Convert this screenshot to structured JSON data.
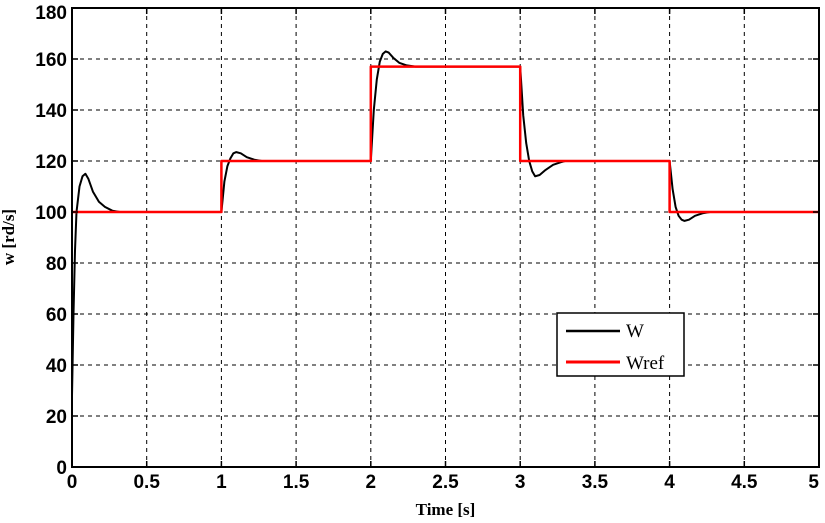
{
  "chart_data": {
    "type": "line",
    "title": "",
    "xlabel": "Time [s]",
    "ylabel": "w [rd/s]",
    "xlim": [
      0,
      5
    ],
    "ylim": [
      0,
      180
    ],
    "xticks": [
      0,
      0.5,
      1,
      1.5,
      2,
      2.5,
      3,
      3.5,
      4,
      4.5,
      5
    ],
    "xtick_labels": [
      "0",
      "0.5",
      "1",
      "1.5",
      "2",
      "2.5",
      "3",
      "3.5",
      "4",
      "4.5",
      "5"
    ],
    "yticks": [
      0,
      20,
      40,
      60,
      80,
      100,
      120,
      140,
      160,
      180
    ],
    "ytick_labels": [
      "0",
      "20",
      "40",
      "60",
      "80",
      "100",
      "120",
      "140",
      "160",
      "180"
    ],
    "grid": true,
    "legend_position": "lower-right",
    "series": [
      {
        "name": "W",
        "color": "#000000",
        "x": [
          0,
          0.01,
          0.02,
          0.03,
          0.05,
          0.07,
          0.09,
          0.11,
          0.14,
          0.18,
          0.22,
          0.27,
          0.32,
          0.37,
          1.0,
          1.02,
          1.04,
          1.06,
          1.08,
          1.1,
          1.13,
          1.17,
          1.22,
          1.27,
          2.0,
          2.02,
          2.04,
          2.06,
          2.08,
          2.1,
          2.12,
          2.15,
          2.19,
          2.24,
          2.3,
          2.35,
          3.0,
          3.02,
          3.04,
          3.06,
          3.08,
          3.1,
          3.13,
          3.17,
          3.22,
          3.27,
          3.3,
          4.0,
          4.02,
          4.04,
          4.06,
          4.08,
          4.1,
          4.13,
          4.17,
          4.22,
          4.27
        ],
        "y": [
          28,
          60,
          85,
          100,
          110,
          114,
          115,
          113,
          108,
          104,
          102,
          100.5,
          100,
          100,
          100,
          112,
          118,
          121,
          123,
          123.5,
          123,
          121.5,
          120.5,
          120,
          120,
          140,
          152,
          159,
          162,
          163,
          162.5,
          160.5,
          158.5,
          157.5,
          157,
          157,
          157,
          138,
          127,
          120,
          116,
          114,
          114.5,
          116.5,
          118.5,
          119.5,
          120,
          120,
          109,
          102,
          98.5,
          97,
          96.5,
          97,
          98.5,
          99.5,
          100
        ]
      },
      {
        "name": "Wref",
        "color": "#ff0000",
        "x": [
          0,
          1,
          1,
          2,
          2,
          3,
          3,
          4,
          4,
          5
        ],
        "y": [
          100,
          100,
          120,
          120,
          157,
          157,
          120,
          120,
          100,
          100
        ]
      }
    ]
  }
}
